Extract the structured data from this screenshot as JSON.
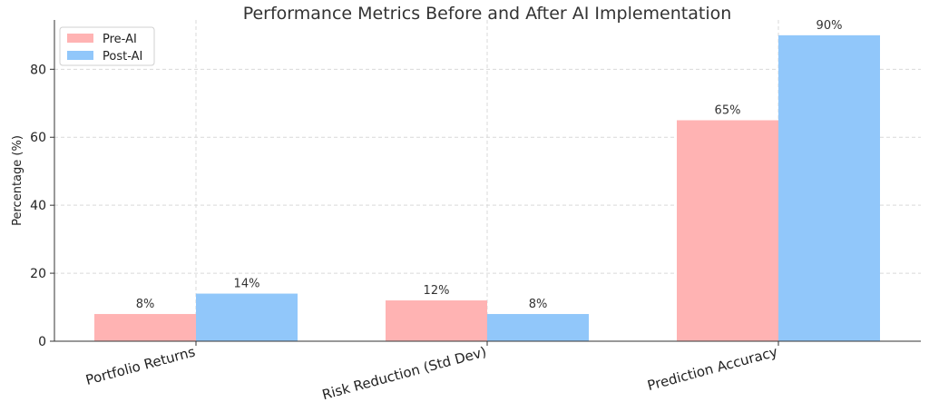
{
  "chart_data": {
    "type": "bar",
    "title": "Performance Metrics Before and After AI Implementation",
    "xlabel": "",
    "ylabel": "Percentage (%)",
    "categories": [
      "Portfolio Returns",
      "Risk Reduction (Std Dev)",
      "Prediction Accuracy"
    ],
    "series": [
      {
        "name": "Pre-AI",
        "values": [
          8,
          12,
          65
        ],
        "color": "#ffb3b3",
        "labels": [
          "8%",
          "12%",
          "65%"
        ]
      },
      {
        "name": "Post-AI",
        "values": [
          14,
          8,
          90
        ],
        "color": "#91c7fa",
        "labels": [
          "14%",
          "8%",
          "90%"
        ]
      }
    ],
    "ylim": [
      0,
      94.5
    ],
    "yticks": [
      0,
      20,
      40,
      60,
      80
    ],
    "grid": true,
    "legend_position": "top-left"
  }
}
